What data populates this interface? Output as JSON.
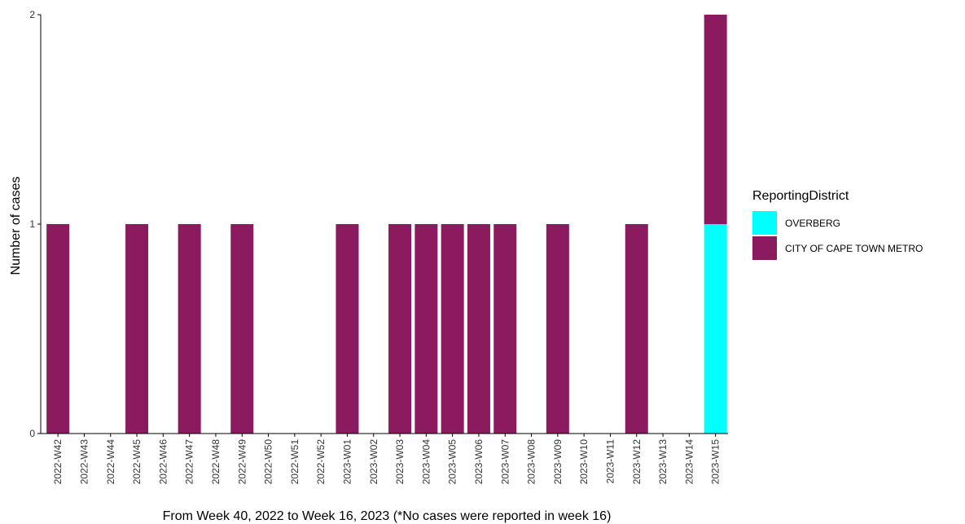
{
  "chart_data": {
    "type": "bar",
    "stacked": true,
    "categories": [
      "2022-W42",
      "2022-W43",
      "2022-W44",
      "2022-W45",
      "2022-W46",
      "2022-W47",
      "2022-W48",
      "2022-W49",
      "2022-W50",
      "2022-W51",
      "2022-W52",
      "2023-W01",
      "2023-W02",
      "2023-W03",
      "2023-W04",
      "2023-W05",
      "2023-W06",
      "2023-W07",
      "2023-W08",
      "2023-W09",
      "2023-W10",
      "2023-W11",
      "2023-W12",
      "2023-W13",
      "2023-W14",
      "2023-W15"
    ],
    "series": [
      {
        "name": "OVERBERG",
        "color": "#00FFFF",
        "values": [
          0,
          0,
          0,
          0,
          0,
          0,
          0,
          0,
          0,
          0,
          0,
          0,
          0,
          0,
          0,
          0,
          0,
          0,
          0,
          0,
          0,
          0,
          0,
          0,
          0,
          1
        ]
      },
      {
        "name": "CITY OF CAPE TOWN METRO",
        "color": "#8B1A5E",
        "values": [
          1,
          0,
          0,
          1,
          0,
          1,
          0,
          1,
          0,
          0,
          0,
          1,
          0,
          1,
          1,
          1,
          1,
          1,
          0,
          1,
          0,
          0,
          1,
          0,
          0,
          1
        ]
      }
    ],
    "xlabel": "From Week 40, 2022 to Week 16, 2023 (*No cases were reported in week 16)",
    "ylabel": "Number of cases",
    "ylim": [
      0,
      2
    ],
    "yticks": [
      0,
      1,
      2
    ],
    "legend_title": "ReportingDistrict",
    "legend_position": "right",
    "grid": false
  }
}
